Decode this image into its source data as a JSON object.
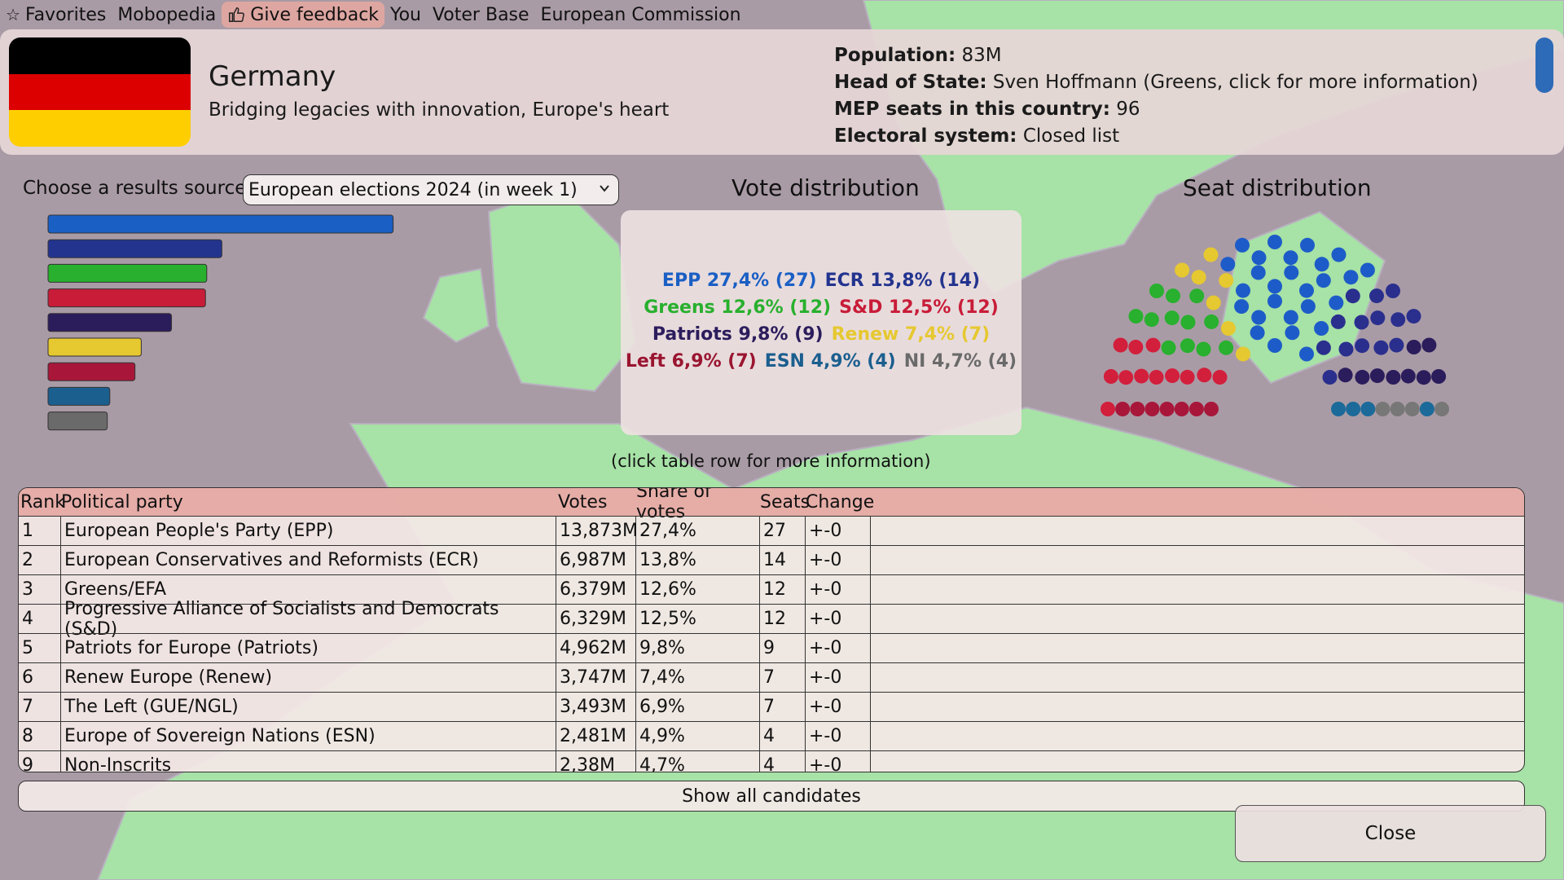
{
  "menu": {
    "favorites": "Favorites",
    "mobopedia": "Mobopedia",
    "feedback": "Give feedback",
    "you": "You",
    "voter_base": "Voter Base",
    "commission": "European Commission"
  },
  "country": {
    "name": "Germany",
    "motto": "Bridging legacies with innovation, Europe's heart",
    "flag_colors": [
      "#000000",
      "#dd0000",
      "#ffce00"
    ],
    "facts": {
      "population_label": "Population:",
      "population": "83M",
      "head_label": "Head of State:",
      "head": "Sven Hoffmann (Greens, click for more information)",
      "seats_label": "MEP seats in this country:",
      "seats": "96",
      "system_label": "Electoral system:",
      "system": "Closed list"
    }
  },
  "source": {
    "label": "Choose a results source",
    "selected": "European elections 2024 (in week 1)"
  },
  "vote_distribution": {
    "title": "Vote distribution",
    "lines": [
      [
        {
          "text": "EPP 27,4% (27)",
          "color": "#1a5fc4"
        },
        {
          "text": "ECR 13,8% (14)",
          "color": "#23348f"
        }
      ],
      [
        {
          "text": "Greens 12,6% (12)",
          "color": "#28b02e"
        },
        {
          "text": "S&D 12,5% (12)",
          "color": "#c81c38"
        }
      ],
      [
        {
          "text": "Patriots 9,8% (9)",
          "color": "#2b1d5c"
        },
        {
          "text": "Renew 7,4% (7)",
          "color": "#e6c830"
        }
      ],
      [
        {
          "text": "Left 6,9% (7)",
          "color": "#9a1530"
        },
        {
          "text": "ESN 4,9% (4)",
          "color": "#1b5f8f"
        },
        {
          "text": "NI 4,7% (4)",
          "color": "#6a6a6a"
        }
      ]
    ]
  },
  "seat_distribution": {
    "title": "Seat distribution"
  },
  "hint": "(click table row for more information)",
  "table": {
    "headers": [
      "Rank",
      "Political party",
      "Votes",
      "Share of votes",
      "Seats",
      "Change"
    ],
    "rows": [
      [
        "1",
        "European People's Party (EPP)",
        "13,873M",
        "27,4%",
        "27",
        "+-0"
      ],
      [
        "2",
        "European Conservatives and Reformists (ECR)",
        "6,987M",
        "13,8%",
        "14",
        "+-0"
      ],
      [
        "3",
        "Greens/EFA",
        "6,379M",
        "12,6%",
        "12",
        "+-0"
      ],
      [
        "4",
        "Progressive Alliance of Socialists and Democrats (S&D)",
        "6,329M",
        "12,5%",
        "12",
        "+-0"
      ],
      [
        "5",
        "Patriots for Europe (Patriots)",
        "4,962M",
        "9,8%",
        "9",
        "+-0"
      ],
      [
        "6",
        "Renew Europe (Renew)",
        "3,747M",
        "7,4%",
        "7",
        "+-0"
      ],
      [
        "7",
        "The Left (GUE/NGL)",
        "3,493M",
        "6,9%",
        "7",
        "+-0"
      ],
      [
        "8",
        "Europe of Sovereign Nations (ESN)",
        "2,481M",
        "4,9%",
        "4",
        "+-0"
      ],
      [
        "9",
        "Non-Inscrits",
        "2,38M",
        "4,7%",
        "4",
        "+-0"
      ]
    ]
  },
  "chart_data": {
    "type": "bar",
    "categories": [
      "EPP",
      "ECR",
      "Greens",
      "S&D",
      "Patriots",
      "Renew",
      "Left",
      "ESN",
      "NI"
    ],
    "values": [
      27.4,
      13.8,
      12.6,
      12.5,
      9.8,
      7.4,
      6.9,
      4.9,
      4.7
    ],
    "seats": [
      27,
      14,
      12,
      12,
      9,
      7,
      7,
      4,
      4
    ],
    "colors": [
      "#1a5fc4",
      "#23348f",
      "#28b02e",
      "#c81c38",
      "#2b1d5c",
      "#e6c830",
      "#a8173a",
      "#1b5f8f",
      "#6a6a6a"
    ],
    "seat_colors": [
      "#1d5cc8",
      "#2a2f8e",
      "#28b02e",
      "#d21f3c",
      "#2b1d5c",
      "#e6c830",
      "#a8173a",
      "#1b6a9a",
      "#777777"
    ],
    "xlim": [
      0,
      30
    ]
  },
  "buttons": {
    "show_all": "Show all candidates",
    "close": "Close"
  }
}
